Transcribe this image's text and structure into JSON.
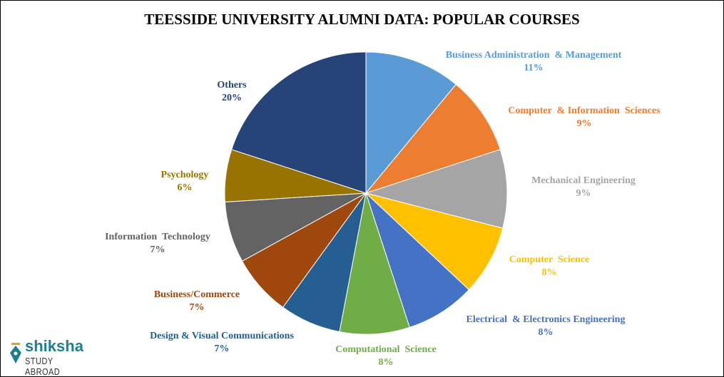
{
  "chart_data": {
    "type": "pie",
    "title": "TEESSIDE UNIVERSITY ALUMNI DATA: POPULAR COURSES",
    "slices": [
      {
        "label": "Business Administration  & Management",
        "value": 11,
        "pct": "11%",
        "color": "#5B9BD5"
      },
      {
        "label": "Computer  & Information  Sciences",
        "value": 9,
        "pct": "9%",
        "color": "#ED7D31"
      },
      {
        "label": "Mechanical Engineering",
        "value": 9,
        "pct": "9%",
        "color": "#A5A5A5"
      },
      {
        "label": "Computer  Science",
        "value": 8,
        "pct": "8%",
        "color": "#FFC000"
      },
      {
        "label": "Electrical  & Electronics Engineering",
        "value": 8,
        "pct": "8%",
        "color": "#4472C4"
      },
      {
        "label": "Computational  Science",
        "value": 8,
        "pct": "8%",
        "color": "#70AD47"
      },
      {
        "label": "Design & Visual Communications",
        "value": 7,
        "pct": "7%",
        "color": "#255E91"
      },
      {
        "label": "Business/Commerce",
        "value": 7,
        "pct": "7%",
        "color": "#9E480E"
      },
      {
        "label": "Information  Technology",
        "value": 7,
        "pct": "7%",
        "color": "#636363"
      },
      {
        "label": "Psychology",
        "value": 6,
        "pct": "6%",
        "color": "#997300"
      },
      {
        "label": "Others",
        "value": 20,
        "pct": "20%",
        "color": "#264478"
      }
    ]
  },
  "logo": {
    "brand": "shiksha",
    "sub": "STUDY ABROAD"
  }
}
